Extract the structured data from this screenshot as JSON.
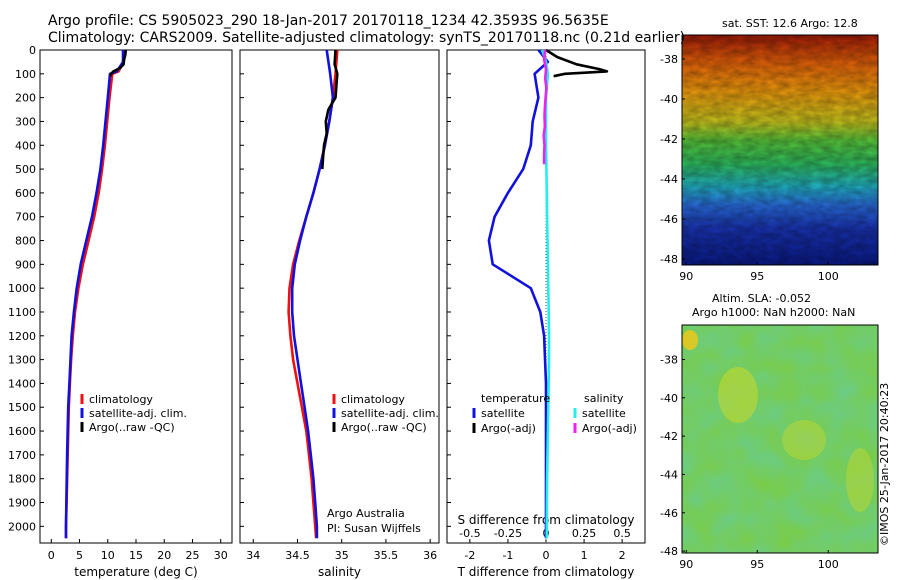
{
  "header": {
    "line1": "Argo profile: CS 5905023_290 18-Jan-2017 20170118_1234 42.3593S 96.5635E",
    "line2": "Climatology: CARS2009. Satellite-adjusted climatology: synTS_20170118.nc (0.21d earlier)"
  },
  "credit": "©IMOS 25-Jan-2017 20:40:23",
  "maps": {
    "sst_title": "sat. SST: 12.6 Argo: 12.8",
    "sla_title1": "Altim. SLA: -0.052",
    "sla_title2": "Argo h1000: NaN h2000: NaN",
    "x_ticks": [
      "90",
      "95",
      "100"
    ],
    "y_ticks": [
      "-38",
      "-40",
      "-42",
      "-44",
      "-46",
      "-48"
    ]
  },
  "colors": {
    "climatology": "#ee1111",
    "satellite": "#1111dd",
    "argo": "#000000",
    "sal_satellite": "#22eeee",
    "sal_argo": "#ee22ee"
  },
  "depth_ticks": [
    "0",
    "100",
    "200",
    "300",
    "400",
    "500",
    "600",
    "700",
    "800",
    "900",
    "1000",
    "1100",
    "1200",
    "1300",
    "1400",
    "1500",
    "1600",
    "1700",
    "1800",
    "1900",
    "2000"
  ],
  "panel_notes": {
    "org": "Argo Australia",
    "pi": "PI: Susan Wijffels"
  },
  "chart_data": [
    {
      "type": "line",
      "xlabel": "temperature (deg C)",
      "ylabel": "",
      "xlim": [
        -2,
        32
      ],
      "ylim": [
        2070,
        0
      ],
      "x_ticks": [
        "0",
        "5",
        "10",
        "15",
        "20",
        "25",
        "30"
      ],
      "legend": [
        "climatology",
        "satellite-adj. clim.",
        "Argo(..raw -QC)"
      ],
      "series": [
        {
          "name": "climatology",
          "color": "#ee1111",
          "depth": [
            0,
            50,
            90,
            100,
            200,
            300,
            400,
            500,
            600,
            700,
            800,
            900,
            1000,
            1100,
            1200,
            1300,
            1400,
            1500,
            1700,
            2000,
            2050
          ],
          "values": [
            12.9,
            12.8,
            11.9,
            10.8,
            10.3,
            9.9,
            9.5,
            9.0,
            8.4,
            7.6,
            6.6,
            5.6,
            4.8,
            4.2,
            3.8,
            3.5,
            3.3,
            3.1,
            2.9,
            2.6,
            2.6
          ]
        },
        {
          "name": "satellite-adj. clim.",
          "color": "#1111dd",
          "depth": [
            0,
            50,
            90,
            100,
            200,
            300,
            400,
            500,
            600,
            700,
            800,
            900,
            1000,
            1100,
            1200,
            1300,
            1400,
            1500,
            1700,
            2000,
            2050
          ],
          "values": [
            12.7,
            12.7,
            11.6,
            10.4,
            10.0,
            9.6,
            9.2,
            8.7,
            8.0,
            7.2,
            6.2,
            5.2,
            4.5,
            4.0,
            3.6,
            3.4,
            3.2,
            3.0,
            2.8,
            2.6,
            2.6
          ]
        },
        {
          "name": "Argo(..raw -QC)",
          "color": "#000000",
          "depth": [
            0,
            20,
            40,
            60,
            75,
            90,
            100,
            110
          ],
          "values": [
            13.2,
            13.1,
            12.9,
            12.8,
            12.2,
            11.0,
            10.6,
            10.4
          ]
        }
      ]
    },
    {
      "type": "line",
      "xlabel": "salinity",
      "ylabel": "",
      "xlim": [
        33.85,
        36.1
      ],
      "ylim": [
        2070,
        0
      ],
      "x_ticks": [
        "34",
        "34.5",
        "35",
        "35.5",
        "36"
      ],
      "legend": [
        "climatology",
        "satellite-adj. clim.",
        "Argo(..raw -QC)"
      ],
      "series": [
        {
          "name": "climatology",
          "color": "#ee1111",
          "depth": [
            0,
            100,
            200,
            300,
            400,
            500,
            600,
            700,
            800,
            900,
            1000,
            1100,
            1200,
            1300,
            1400,
            1500,
            1600,
            1700,
            1800,
            1900,
            2000,
            2050
          ],
          "values": [
            34.95,
            34.93,
            34.9,
            34.86,
            34.81,
            34.75,
            34.68,
            34.6,
            34.52,
            34.45,
            34.41,
            34.4,
            34.42,
            34.45,
            34.5,
            34.55,
            34.6,
            34.63,
            34.66,
            34.68,
            34.7,
            34.71
          ]
        },
        {
          "name": "satellite-adj. clim.",
          "color": "#1111dd",
          "depth": [
            0,
            100,
            200,
            300,
            400,
            500,
            600,
            700,
            800,
            900,
            1000,
            1100,
            1200,
            1300,
            1400,
            1500,
            1600,
            1700,
            1800,
            1900,
            2000,
            2050
          ],
          "values": [
            34.83,
            34.87,
            34.9,
            34.86,
            34.81,
            34.75,
            34.68,
            34.6,
            34.53,
            34.47,
            34.44,
            34.44,
            34.46,
            34.5,
            34.54,
            34.58,
            34.62,
            34.65,
            34.68,
            34.7,
            34.72,
            34.72
          ]
        },
        {
          "name": "Argo(..raw -QC)",
          "color": "#000000",
          "depth": [
            0,
            60,
            100,
            150,
            200,
            250,
            300,
            350,
            400,
            450,
            500
          ],
          "values": [
            34.93,
            34.92,
            34.95,
            34.94,
            34.93,
            34.85,
            34.82,
            34.83,
            34.8,
            34.79,
            34.78
          ]
        }
      ]
    },
    {
      "type": "line",
      "xlabel": "T difference from climatology",
      "xlabel2": "S difference from climatology",
      "ylabel": "",
      "xlim": [
        -2.6,
        2.6
      ],
      "ylim": [
        2070,
        0
      ],
      "x_ticks": [
        "-2",
        "-1",
        "0",
        "1",
        "2"
      ],
      "x_ticks_top": [
        "-0.5",
        "-0.25",
        "0",
        "0.25",
        "0.5"
      ],
      "legend_titles": [
        "temperature",
        "salinity"
      ],
      "legend": [
        "satellite",
        "Argo(-adj)",
        "satellite",
        "Argo(-adj)"
      ],
      "series": [
        {
          "name": "satellite",
          "group": "temperature",
          "color": "#1111dd",
          "depth": [
            0,
            50,
            100,
            200,
            300,
            400,
            500,
            600,
            700,
            800,
            900,
            1000,
            1100,
            1200,
            1400,
            1600,
            1800,
            2000,
            2050
          ],
          "values": [
            -0.2,
            0.05,
            -0.3,
            -0.2,
            -0.35,
            -0.4,
            -0.6,
            -1.0,
            -1.35,
            -1.5,
            -1.4,
            -0.4,
            -0.15,
            -0.05,
            0.0,
            0.0,
            0.0,
            0.0,
            0.0
          ]
        },
        {
          "name": "Argo(-adj)",
          "group": "temperature",
          "color": "#000000",
          "depth": [
            0,
            30,
            60,
            80,
            90,
            100,
            110
          ],
          "values": [
            0.0,
            0.3,
            0.8,
            1.4,
            1.6,
            0.5,
            0.2
          ]
        },
        {
          "name": "satellite",
          "group": "salinity",
          "color": "#22eeee",
          "depth": [
            0,
            50,
            100,
            200,
            300,
            400,
            500,
            600,
            700,
            800,
            900,
            1000,
            1100,
            1200,
            1300,
            1400,
            1600,
            1800,
            2000,
            2050
          ],
          "values": [
            -0.1,
            0.0,
            0.05,
            0.0,
            0.0,
            0.0,
            0.01,
            0.02,
            0.03,
            0.04,
            0.05,
            0.06,
            0.07,
            0.08,
            0.08,
            0.07,
            0.05,
            0.03,
            0.02,
            0.02
          ]
        },
        {
          "name": "Argo(-adj)",
          "group": "salinity",
          "color": "#ee22ee",
          "depth": [
            0,
            40,
            80,
            120,
            160,
            200,
            240,
            280,
            320,
            360,
            400,
            440,
            480
          ],
          "values": [
            -0.02,
            -0.05,
            0.0,
            -0.02,
            0.01,
            -0.01,
            -0.03,
            -0.04,
            -0.03,
            -0.06,
            -0.04,
            -0.05,
            -0.05
          ]
        }
      ]
    }
  ]
}
